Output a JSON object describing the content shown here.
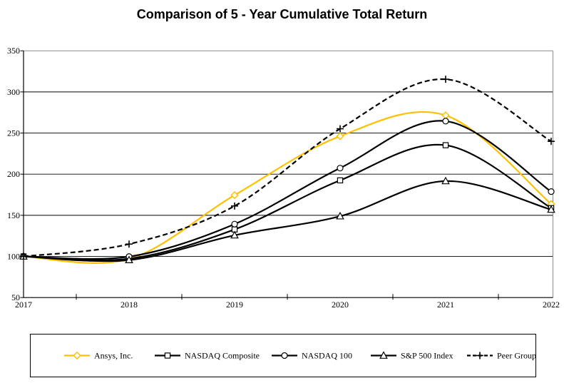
{
  "title": "Comparison of 5 - Year Cumulative Total Return",
  "colors": {
    "accent_gold": "#FFC000",
    "series_black": "#000000",
    "grid_black": "#000000",
    "frame_gray": "#8a8a8a",
    "marker_fill": "#ffffff"
  },
  "chart_data": {
    "type": "line",
    "title": "Comparison of 5 - Year Cumulative Total Return",
    "x": [
      2017,
      2018,
      2019,
      2020,
      2021,
      2022
    ],
    "x_labels": [
      "2017",
      "2018",
      "2019",
      "2020",
      "2021",
      "2022"
    ],
    "xlabel": "",
    "ylabel": "",
    "ylim": [
      50,
      350
    ],
    "y_ticks": [
      50,
      100,
      150,
      200,
      250,
      300,
      350
    ],
    "grid": "horizontal",
    "line_style": "smooth-spline",
    "legend_position": "bottom-box",
    "series": [
      {
        "name": "Ansys, Inc.",
        "color": "#FFC000",
        "marker": "diamond",
        "dash": "solid",
        "values": [
          100,
          96.8,
          174.5,
          246.2,
          271.5,
          163.7
        ]
      },
      {
        "name": "NASDAQ Composite",
        "color": "#000000",
        "marker": "square",
        "dash": "solid",
        "values": [
          100,
          97.2,
          132.8,
          192.5,
          235.2,
          158.7
        ]
      },
      {
        "name": "NASDAQ 100",
        "color": "#000000",
        "marker": "circle",
        "dash": "solid",
        "values": [
          100,
          99.8,
          139.3,
          207.4,
          264.5,
          178.8
        ]
      },
      {
        "name": "S&P 500 Index",
        "color": "#000000",
        "marker": "triangle",
        "dash": "solid",
        "values": [
          100,
          95.6,
          125.7,
          148.9,
          191.6,
          156.9
        ]
      },
      {
        "name": "Peer Group",
        "color": "#000000",
        "marker": "plus",
        "dash": "dashed",
        "values": [
          100,
          115.0,
          161.3,
          255.2,
          315.4,
          239.9
        ]
      }
    ]
  }
}
